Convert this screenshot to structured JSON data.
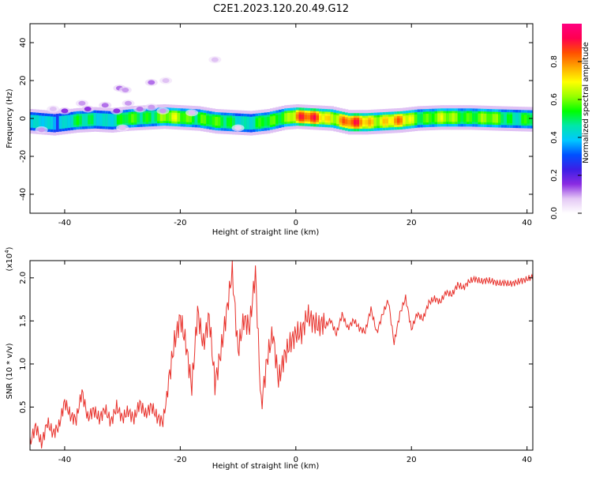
{
  "page_title": "C2E1.2023.120.20.49.G12",
  "chart_data": [
    {
      "type": "heatmap",
      "title": "C2E1.2023.120.20.49.G12",
      "xlabel": "Height of straight line (km)",
      "ylabel": "Frequency (Hz)",
      "xlim": [
        -46,
        41
      ],
      "ylim": [
        -50,
        50
      ],
      "xticks": [
        -40,
        -20,
        0,
        20,
        40
      ],
      "yticks": [
        -40,
        -20,
        0,
        20,
        40
      ],
      "colorbar": {
        "label": "Normalized spectral amplitude",
        "range": [
          0.0,
          1.0
        ],
        "ticks": [
          0.0,
          0.2,
          0.4,
          0.6,
          0.8
        ],
        "tick_labels": [
          "0.0",
          "0.2",
          "0.4",
          "0.6",
          "0.8"
        ],
        "colors": [
          "#ffffff",
          "#e4c8f5",
          "#8a2be2",
          "#3c1ee6",
          "#0050ff",
          "#00c8ff",
          "#00e6aa",
          "#00ff00",
          "#96ff00",
          "#ffff00",
          "#ffaa00",
          "#ff5000",
          "#ff0050",
          "#ff0080"
        ]
      },
      "ridge": {
        "x": [
          -46,
          -42,
          -38,
          -35,
          -32,
          -29,
          -26,
          -23,
          -20,
          -17,
          -14,
          -11,
          -8,
          -5,
          -2,
          0,
          3,
          6,
          9,
          12,
          15,
          18,
          21,
          25,
          30,
          35,
          41
        ],
        "freq": [
          -1.5,
          -2.5,
          -1.0,
          -0.5,
          -1.0,
          0.0,
          0.5,
          1.0,
          0.5,
          0.0,
          -1.5,
          -2.0,
          -2.5,
          -1.5,
          0.5,
          1.0,
          0.5,
          0.0,
          -2.0,
          -2.0,
          -1.5,
          -1.0,
          0.0,
          0.5,
          0.5,
          0.0,
          -0.5
        ],
        "amplitude": [
          0.45,
          0.5,
          0.55,
          0.55,
          0.55,
          0.6,
          0.65,
          0.7,
          0.7,
          0.7,
          0.6,
          0.6,
          0.55,
          0.6,
          0.75,
          0.95,
          0.95,
          0.85,
          0.95,
          0.9,
          0.85,
          0.85,
          0.7,
          0.7,
          0.7,
          0.65,
          0.6
        ]
      },
      "blobs": [
        {
          "x": -30.5,
          "freq": 16,
          "amplitude": 0.12
        },
        {
          "x": -29.5,
          "freq": 15,
          "amplitude": 0.1
        },
        {
          "x": -25,
          "freq": 19,
          "amplitude": 0.12
        },
        {
          "x": -22.5,
          "freq": 20,
          "amplitude": 0.08
        },
        {
          "x": -14,
          "freq": 31,
          "amplitude": 0.08
        },
        {
          "x": -37,
          "freq": 8,
          "amplitude": 0.1
        },
        {
          "x": -33,
          "freq": 7,
          "amplitude": 0.12
        },
        {
          "x": -29,
          "freq": 8,
          "amplitude": 0.1
        },
        {
          "x": -25,
          "freq": 6,
          "amplitude": 0.1
        },
        {
          "x": -42,
          "freq": 5,
          "amplitude": 0.08
        },
        {
          "x": -40,
          "freq": 4,
          "amplitude": 0.15
        },
        {
          "x": -36,
          "freq": 5,
          "amplitude": 0.15
        },
        {
          "x": -31,
          "freq": 4,
          "amplitude": 0.15
        },
        {
          "x": -27,
          "freq": 5,
          "amplitude": 0.12
        },
        {
          "x": -23,
          "freq": 4,
          "amplitude": 0.1
        },
        {
          "x": -18,
          "freq": 3,
          "amplitude": 0.08
        },
        {
          "x": -44,
          "freq": -6,
          "amplitude": 0.1
        },
        {
          "x": -30,
          "freq": -5,
          "amplitude": 0.08
        },
        {
          "x": -10,
          "freq": -5,
          "amplitude": 0.06
        }
      ]
    },
    {
      "type": "line",
      "xlabel": "Height of straight line (km)",
      "ylabel": "SNR (10 * v/v)",
      "ylabel_multiplier": "(x10",
      "ylabel_multiplier_exponent": "4",
      "ylabel_multiplier_close": ")",
      "xlim": [
        -46,
        41
      ],
      "ylim": [
        0.0,
        2.2
      ],
      "xticks": [
        -40,
        -20,
        0,
        20,
        40
      ],
      "yticks": [
        0.5,
        1.0,
        1.5,
        2.0
      ],
      "ytick_labels": [
        "0.5",
        "1.0",
        "1.5",
        "2.0"
      ],
      "line_color": "#e8312b",
      "series": [
        {
          "x": [
            -46,
            -45,
            -44,
            -43,
            -42,
            -41,
            -40,
            -39,
            -38,
            -37,
            -36,
            -35,
            -34,
            -33,
            -32,
            -31,
            -30,
            -29,
            -28,
            -27,
            -26,
            -25,
            -24,
            -23,
            -22,
            -21,
            -20,
            -19,
            -18,
            -17,
            -16,
            -15,
            -14,
            -13,
            -12,
            -11,
            -10,
            -9,
            -8,
            -7,
            -6,
            -5,
            -4,
            -3,
            -2,
            -1,
            0,
            1,
            2,
            3,
            4,
            5,
            6,
            7,
            8,
            9,
            10,
            11,
            12,
            13,
            14,
            15,
            16,
            17,
            18,
            19,
            20,
            21,
            22,
            23,
            24,
            25,
            26,
            27,
            28,
            29,
            30,
            31,
            32,
            33,
            34,
            35,
            36,
            37,
            38,
            39,
            40,
            41
          ],
          "y": [
            0.12,
            0.35,
            0.15,
            0.4,
            0.25,
            0.3,
            0.55,
            0.35,
            0.28,
            0.6,
            0.3,
            0.42,
            0.35,
            0.5,
            0.38,
            0.58,
            0.45,
            0.52,
            0.4,
            0.55,
            0.38,
            0.45,
            0.3,
            0.25,
            0.7,
            1.2,
            1.55,
            1.3,
            0.85,
            1.75,
            1.35,
            1.65,
            0.8,
            1.1,
            1.5,
            1.95,
            1.0,
            1.4,
            1.35,
            2.05,
            0.55,
            1.15,
            1.5,
            0.95,
            1.2,
            1.3,
            1.35,
            1.3,
            1.45,
            1.35,
            1.3,
            1.4,
            1.5,
            1.35,
            1.6,
            1.45,
            1.55,
            1.45,
            1.4,
            1.65,
            1.35,
            1.55,
            1.7,
            1.2,
            1.55,
            1.75,
            1.4,
            1.6,
            1.55,
            1.75,
            1.8,
            1.75,
            1.85,
            1.8,
            1.9,
            1.85,
            1.92,
            1.95,
            1.93,
            1.96,
            1.97,
            1.96,
            1.98,
            1.97,
            1.98,
            1.99,
            1.99,
            2.0
          ]
        }
      ]
    }
  ]
}
